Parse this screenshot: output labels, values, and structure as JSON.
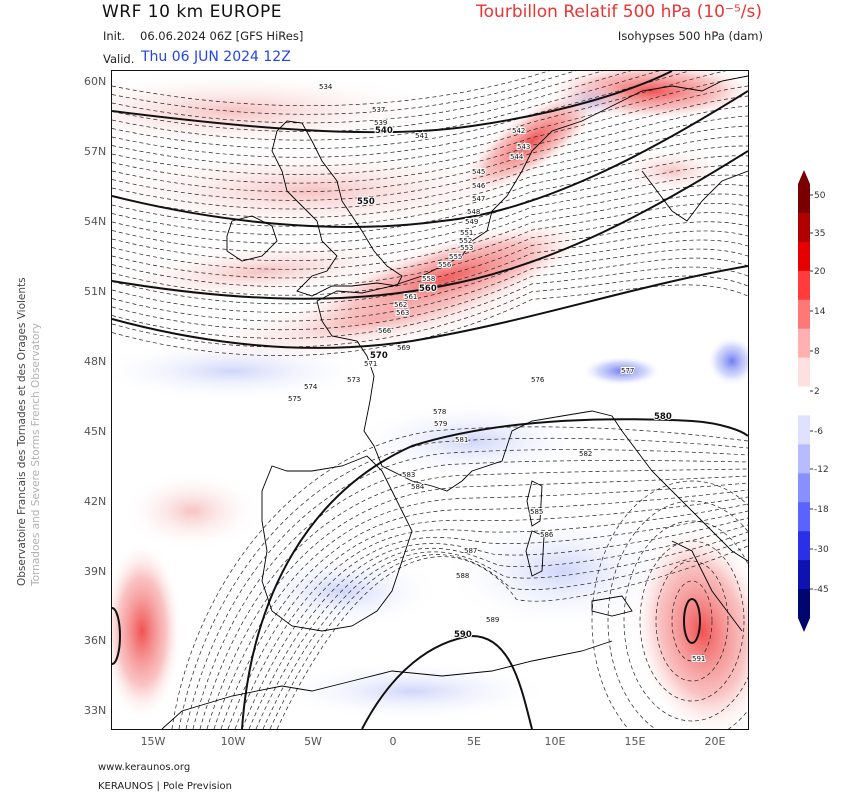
{
  "header": {
    "model": "WRF 10 km EUROPE",
    "init_label": "Init.",
    "init_value": "06.06.2024 06Z [GFS HiRes]",
    "valid_label": "Valid.",
    "valid_value": "Thu 06 JUN 2024 12Z",
    "parameter": "Tourbillon Relatif 500 hPa (10⁻⁵/s)",
    "subtitle": "Isohypses 500 hPa (dam)"
  },
  "side_text": {
    "line1": "Observatoire Francais des Tornades et des Orages Violents",
    "line2": "Tornadoes and Severe Storms French Observatory"
  },
  "footer": {
    "url": "www.keraunos.org",
    "brand": "KERAUNOS | Pole Prevision"
  },
  "map": {
    "lat_labels": [
      "60N",
      "57N",
      "54N",
      "51N",
      "48N",
      "45N",
      "42N",
      "39N",
      "36N",
      "33N"
    ],
    "lon_labels": [
      "15W",
      "10W",
      "5W",
      "0",
      "5E",
      "10E",
      "15E",
      "20E"
    ],
    "isohypse_labels": [
      "534",
      "537",
      "539",
      "540",
      "541",
      "542",
      "543",
      "544",
      "545",
      "546",
      "547",
      "548",
      "549",
      "550",
      "551",
      "552",
      "553",
      "555",
      "556",
      "558",
      "560",
      "561",
      "562",
      "563",
      "566",
      "569",
      "570",
      "571",
      "573",
      "574",
      "575",
      "576",
      "577",
      "578",
      "579",
      "580",
      "581",
      "582",
      "583",
      "584",
      "585",
      "586",
      "587",
      "588",
      "589",
      "590",
      "591"
    ],
    "bold_isohypse_labels": [
      "540",
      "550",
      "560",
      "570",
      "580",
      "590"
    ],
    "colors": {
      "positive_vorticity": "#ee3333",
      "negative_vorticity": "#3344ee",
      "contour": "#111111"
    }
  },
  "colorbar": {
    "labels": [
      "50",
      "35",
      "20",
      "14",
      "8",
      "2",
      "-6",
      "-12",
      "-18",
      "-30",
      "-45"
    ],
    "colors": [
      "#7a0000",
      "#b00000",
      "#e60000",
      "#ff3b3b",
      "#ff7878",
      "#ffb0b0",
      "#ffe0e0",
      "#ffffff",
      "#e0e0ff",
      "#b6bcff",
      "#8890ff",
      "#5a62ff",
      "#2b30e8",
      "#0d12b0",
      "#00066e"
    ]
  }
}
